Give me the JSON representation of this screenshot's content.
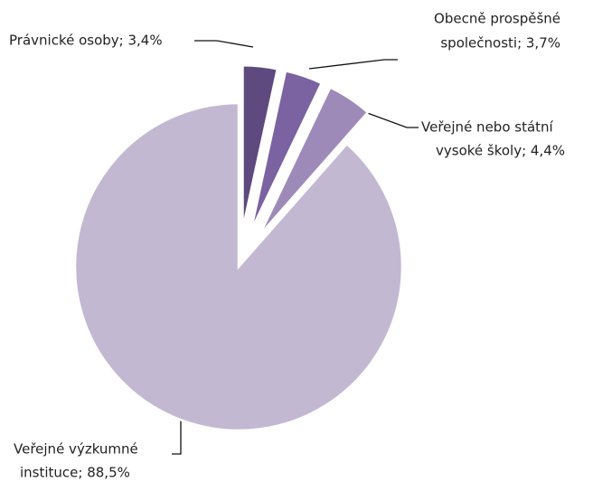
{
  "chart_data": {
    "type": "pie",
    "values": [
      3.4,
      3.7,
      4.4,
      88.5
    ],
    "value_labels": [
      [
        "Právnické osoby; 3,4%"
      ],
      [
        "Obecně prospěšné",
        "společnosti; 3,7%"
      ],
      [
        "Veřejné nebo státní",
        "vysoké školy; 4,4%"
      ],
      [
        "Veřejné výzkumné",
        "instituce; 88,5%"
      ]
    ],
    "colors": [
      "#5e4a7e",
      "#7b62a0",
      "#9e8ab8",
      "#c3b8d2"
    ]
  }
}
